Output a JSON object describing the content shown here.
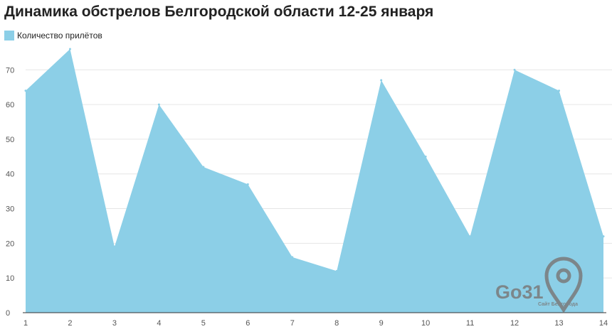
{
  "chart_data": {
    "type": "area",
    "title": "Динамика обстрелов Белгородской области 12-25 января",
    "xlabel": "",
    "ylabel": "",
    "x": [
      1,
      2,
      3,
      4,
      5,
      6,
      7,
      8,
      9,
      10,
      11,
      12,
      13,
      14
    ],
    "series": [
      {
        "name": "Количество прилётов",
        "values": [
          64,
          76,
          19,
          60,
          42,
          37,
          16,
          12,
          67,
          45,
          22,
          70,
          64,
          22
        ],
        "color": "#8ccfe7"
      }
    ],
    "ylim": [
      0,
      76
    ],
    "yticks": [
      0,
      10,
      20,
      30,
      40,
      50,
      60,
      70
    ],
    "grid": true,
    "legend_position": "top-left"
  },
  "watermark": {
    "brand": "Go31",
    "tagline": "Сайт Белгорода"
  },
  "colors": {
    "area": "#8ccfe7",
    "grid": "#e6e6e6",
    "axis": "#333333",
    "watermark": "#7a7a7a"
  }
}
